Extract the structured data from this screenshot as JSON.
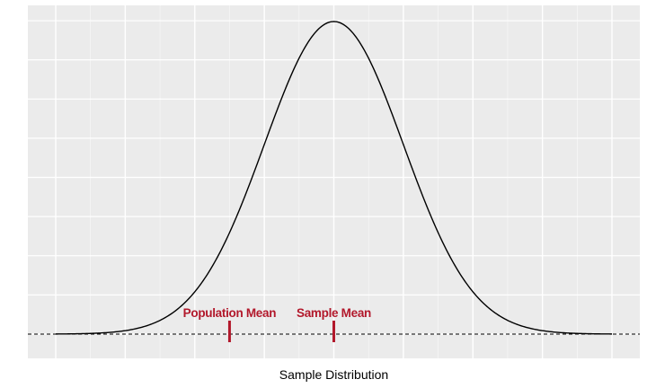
{
  "chart_data": {
    "type": "line",
    "title": "",
    "xlabel": "Sample Distribution",
    "ylabel": "",
    "xlim": [
      -4,
      4
    ],
    "ylim": [
      -0.055,
      0.43
    ],
    "x_gridlines": [
      -4,
      -3,
      -2,
      -1,
      0,
      1,
      2,
      3,
      4
    ],
    "y_gridlines": [
      0,
      0.05,
      0.1,
      0.15,
      0.2,
      0.25,
      0.3,
      0.35,
      0.4
    ],
    "grid": true,
    "legend": "none",
    "series": [
      {
        "distribution": "normal",
        "mean": 0,
        "sd": 1,
        "x_range": [
          -4,
          4
        ],
        "y_peak": 0.3989
      }
    ],
    "baseline": {
      "y": 0,
      "style": "dashed"
    },
    "markers": [
      {
        "label": "Population Mean",
        "x": -1.5
      },
      {
        "label": "Sample Mean",
        "x": 0
      }
    ],
    "colors": {
      "panel_background": "#ebebeb",
      "grid": "#ffffff",
      "curve": "#000000",
      "marker": "#b2182b"
    }
  }
}
